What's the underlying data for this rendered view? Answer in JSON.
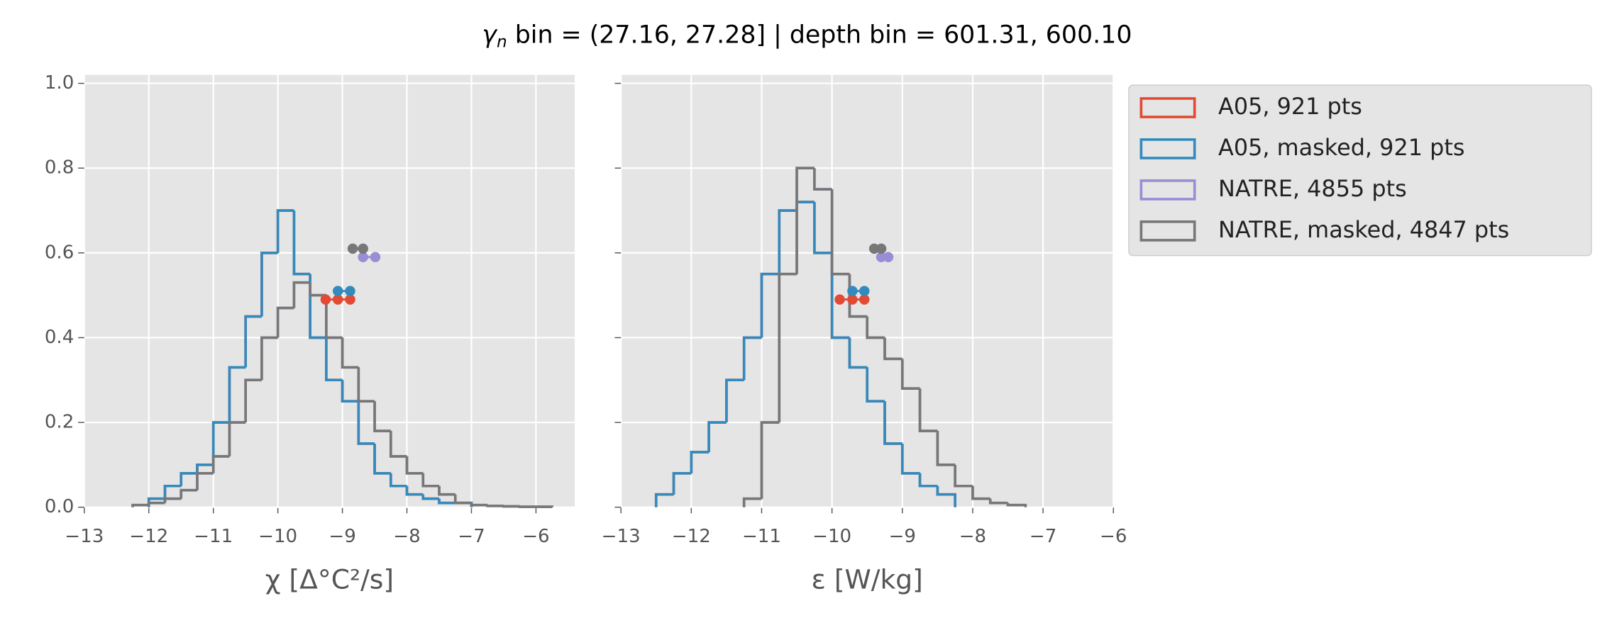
{
  "title_symbol": "γ",
  "title_symbol_sub": "n",
  "title": " bin = (27.16, 27.28] | depth bin = 601.31, 600.10",
  "chart_data": [
    {
      "type": "histogram",
      "xlabel": "χ [Δ°C²/s]",
      "xlim": [
        -13,
        -5.4
      ],
      "ylim": [
        0,
        1.02
      ],
      "xticks": [
        {
          "value": -13,
          "label": "−13"
        },
        {
          "value": -12,
          "label": "−12"
        },
        {
          "value": -11,
          "label": "−11"
        },
        {
          "value": -10,
          "label": "−10"
        },
        {
          "value": -9,
          "label": "−9"
        },
        {
          "value": -8,
          "label": "−8"
        },
        {
          "value": -7,
          "label": "−7"
        },
        {
          "value": -6,
          "label": "−6"
        }
      ],
      "yticks": [
        {
          "value": 0,
          "label": "0.0"
        },
        0.2,
        0.4,
        0.6,
        0.8,
        {
          "value": 1,
          "label": "1.0"
        }
      ],
      "grid": true,
      "series": [
        {
          "color": "#E24A33",
          "bins": [
            -12,
            -11.75,
            -11.5,
            -11.25,
            -11,
            -10.75,
            -10.5,
            -10.25,
            -10,
            -9.75,
            -9.5,
            -9.25,
            -9,
            -8.75,
            -8.5,
            -8.25,
            -8,
            -7.75,
            -7.5,
            -7.25,
            -7
          ],
          "values": [
            0.02,
            0.05,
            0.08,
            0.1,
            0.2,
            0.33,
            0.45,
            0.6,
            0.7,
            0.55,
            0.4,
            0.3,
            0.25,
            0.15,
            0.08,
            0.05,
            0.03,
            0.02,
            0.01,
            0.01
          ],
          "marker_x": [
            -9.26,
            -9.07,
            -8.88
          ],
          "marker_y": [
            0.49,
            0.49,
            0.49
          ]
        },
        {
          "color": "#348ABD",
          "bins": [
            -12,
            -11.75,
            -11.5,
            -11.25,
            -11,
            -10.75,
            -10.5,
            -10.25,
            -10,
            -9.75,
            -9.5,
            -9.25,
            -9,
            -8.75,
            -8.5,
            -8.25,
            -8,
            -7.75,
            -7.5,
            -7.25,
            -7
          ],
          "values": [
            0.02,
            0.05,
            0.08,
            0.1,
            0.2,
            0.33,
            0.45,
            0.6,
            0.7,
            0.55,
            0.4,
            0.3,
            0.25,
            0.15,
            0.08,
            0.05,
            0.03,
            0.02,
            0.01,
            0.01
          ],
          "marker_x": [
            -9.07,
            -8.88
          ],
          "marker_y": [
            0.51,
            0.51
          ]
        },
        {
          "color": "#988ED5",
          "bins": [
            -12.25,
            -12,
            -11.75,
            -11.5,
            -11.25,
            -11,
            -10.75,
            -10.5,
            -10.25,
            -10,
            -9.75,
            -9.5,
            -9.25,
            -9,
            -8.75,
            -8.5,
            -8.25,
            -8,
            -7.75,
            -7.5,
            -7.25,
            -7,
            -6.75,
            -6.5,
            -6.25,
            -6,
            -5.75
          ],
          "values": [
            0.005,
            0.01,
            0.02,
            0.04,
            0.08,
            0.12,
            0.2,
            0.3,
            0.4,
            0.47,
            0.53,
            0.5,
            0.4,
            0.33,
            0.25,
            0.18,
            0.12,
            0.08,
            0.05,
            0.03,
            0.01,
            0.005,
            0.003,
            0.002,
            0.001,
            0.001
          ],
          "marker_x": [
            -8.68,
            -8.49
          ],
          "marker_y": [
            0.59,
            0.59
          ]
        },
        {
          "color": "#777777",
          "bins": [
            -12.25,
            -12,
            -11.75,
            -11.5,
            -11.25,
            -11,
            -10.75,
            -10.5,
            -10.25,
            -10,
            -9.75,
            -9.5,
            -9.25,
            -9,
            -8.75,
            -8.5,
            -8.25,
            -8,
            -7.75,
            -7.5,
            -7.25,
            -7,
            -6.75,
            -6.5,
            -6.25,
            -6,
            -5.75
          ],
          "values": [
            0.005,
            0.01,
            0.02,
            0.04,
            0.08,
            0.12,
            0.2,
            0.3,
            0.4,
            0.47,
            0.53,
            0.5,
            0.4,
            0.33,
            0.25,
            0.18,
            0.12,
            0.08,
            0.05,
            0.03,
            0.01,
            0.005,
            0.003,
            0.002,
            0.001,
            0.001
          ],
          "marker_x": [
            -8.84,
            -8.68
          ],
          "marker_y": [
            0.61,
            0.61
          ]
        }
      ]
    },
    {
      "type": "histogram",
      "xlabel": "ε [W/kg]",
      "xlim": [
        -13,
        -6
      ],
      "ylim": [
        0,
        1.02
      ],
      "xticks": [
        {
          "value": -13,
          "label": "−13"
        },
        {
          "value": -12,
          "label": "−12"
        },
        {
          "value": -11,
          "label": "−11"
        },
        {
          "value": -10,
          "label": "−10"
        },
        {
          "value": -9,
          "label": "−9"
        },
        {
          "value": -8,
          "label": "−8"
        },
        {
          "value": -7,
          "label": "−7"
        },
        {
          "value": -6,
          "label": "−6"
        }
      ],
      "yticks": [
        0,
        0.2,
        0.4,
        0.6,
        0.8,
        1
      ],
      "grid": true,
      "legend": "outside upper right",
      "series": [
        {
          "name": "A05, 921 pts",
          "color": "#E24A33",
          "bins": [
            -12.5,
            -12.25,
            -12,
            -11.75,
            -11.5,
            -11.25,
            -11,
            -10.75,
            -10.5,
            -10.25,
            -10,
            -9.75,
            -9.5,
            -9.25,
            -9,
            -8.75,
            -8.5,
            -8.25
          ],
          "values": [
            0.03,
            0.08,
            0.13,
            0.2,
            0.3,
            0.4,
            0.55,
            0.7,
            0.72,
            0.6,
            0.4,
            0.33,
            0.25,
            0.15,
            0.08,
            0.05,
            0.03
          ],
          "marker_x": [
            -9.89,
            -9.71,
            -9.54
          ],
          "marker_y": [
            0.49,
            0.49,
            0.49
          ]
        },
        {
          "name": "A05, masked,  921 pts",
          "color": "#348ABD",
          "bins": [
            -12.5,
            -12.25,
            -12,
            -11.75,
            -11.5,
            -11.25,
            -11,
            -10.75,
            -10.5,
            -10.25,
            -10,
            -9.75,
            -9.5,
            -9.25,
            -9,
            -8.75,
            -8.5,
            -8.25
          ],
          "values": [
            0.03,
            0.08,
            0.13,
            0.2,
            0.3,
            0.4,
            0.55,
            0.7,
            0.72,
            0.6,
            0.4,
            0.33,
            0.25,
            0.15,
            0.08,
            0.05,
            0.03
          ],
          "marker_x": [
            -9.71,
            -9.54
          ],
          "marker_y": [
            0.51,
            0.51
          ]
        },
        {
          "name": "NATRE, 4855 pts",
          "color": "#988ED5",
          "bins": [
            -11.25,
            -11,
            -10.75,
            -10.5,
            -10.25,
            -10,
            -9.75,
            -9.5,
            -9.25,
            -9,
            -8.75,
            -8.5,
            -8.25,
            -8,
            -7.75,
            -7.5,
            -7.25
          ],
          "values": [
            0.02,
            0.2,
            0.55,
            0.8,
            0.75,
            0.55,
            0.45,
            0.4,
            0.35,
            0.28,
            0.18,
            0.1,
            0.05,
            0.02,
            0.01,
            0.005
          ],
          "marker_x": [
            -9.3,
            -9.2
          ],
          "marker_y": [
            0.59,
            0.59
          ]
        },
        {
          "name": "NATRE, masked,  4847 pts",
          "color": "#777777",
          "bins": [
            -11.25,
            -11,
            -10.75,
            -10.5,
            -10.25,
            -10,
            -9.75,
            -9.5,
            -9.25,
            -9,
            -8.75,
            -8.5,
            -8.25,
            -8,
            -7.75,
            -7.5,
            -7.25
          ],
          "values": [
            0.02,
            0.2,
            0.55,
            0.8,
            0.75,
            0.55,
            0.45,
            0.4,
            0.35,
            0.28,
            0.18,
            0.1,
            0.05,
            0.02,
            0.01,
            0.005
          ],
          "marker_x": [
            -9.4,
            -9.3
          ],
          "marker_y": [
            0.61,
            0.61
          ]
        }
      ]
    }
  ]
}
